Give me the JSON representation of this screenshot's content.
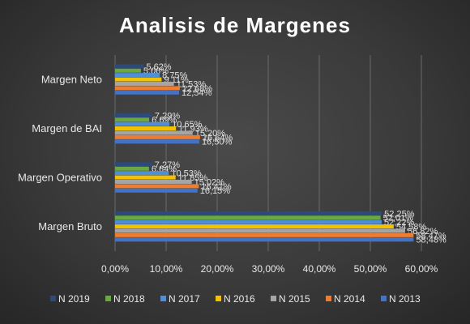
{
  "chart_data": {
    "type": "bar",
    "orientation": "horizontal",
    "title": "Analisis de Margenes",
    "categories": [
      "Margen Bruto",
      "Margen Operativo",
      "Margen de BAI",
      "Margen Neto"
    ],
    "xlim": [
      0,
      60
    ],
    "x_ticks": [
      "0,00%",
      "10,00%",
      "20,00%",
      "30,00%",
      "40,00%",
      "50,00%",
      "60,00%"
    ],
    "grid": true,
    "legend_position": "bottom",
    "series": [
      {
        "name": "N 2019",
        "color": "#2e4a7a",
        "values": [
          52.25,
          7.27,
          7.29,
          5.62
        ],
        "labels": [
          "52,25%",
          "7,27%",
          "7,29%",
          "5,62%"
        ]
      },
      {
        "name": "N 2018",
        "color": "#6aa842",
        "values": [
          52.01,
          6.64,
          6.69,
          5.06
        ],
        "labels": [
          "52,01%",
          "6,64%",
          "6,69%",
          "5,06%"
        ]
      },
      {
        "name": "N 2017",
        "color": "#4f8fd8",
        "values": [
          52.22,
          10.53,
          10.65,
          8.75
        ],
        "labels": [
          "52,22%",
          "10,53%",
          "10,65%",
          "8,75%"
        ]
      },
      {
        "name": "N 2016",
        "color": "#f2c200",
        "values": [
          54.58,
          11.85,
          11.93,
          9.11
        ],
        "labels": [
          "54,58%",
          "11,85%",
          "11,93%",
          "9,11%"
        ]
      },
      {
        "name": "N 2015",
        "color": "#a5a5a5",
        "values": [
          56.82,
          15.02,
          15.2,
          11.53
        ],
        "labels": [
          "56,82%",
          "15,02%",
          "15,20%",
          "11,53%"
        ]
      },
      {
        "name": "N 2014",
        "color": "#ed7d31",
        "values": [
          58.47,
          16.41,
          16.64,
          12.68
        ],
        "labels": [
          "58,47%",
          "16,41%",
          "16,64%",
          "12,68%"
        ]
      },
      {
        "name": "N 2013",
        "color": "#4472c4",
        "values": [
          58.48,
          16.15,
          16.5,
          12.54
        ],
        "labels": [
          "58,48%",
          "16,15%",
          "16,50%",
          "12,54%"
        ]
      }
    ]
  }
}
